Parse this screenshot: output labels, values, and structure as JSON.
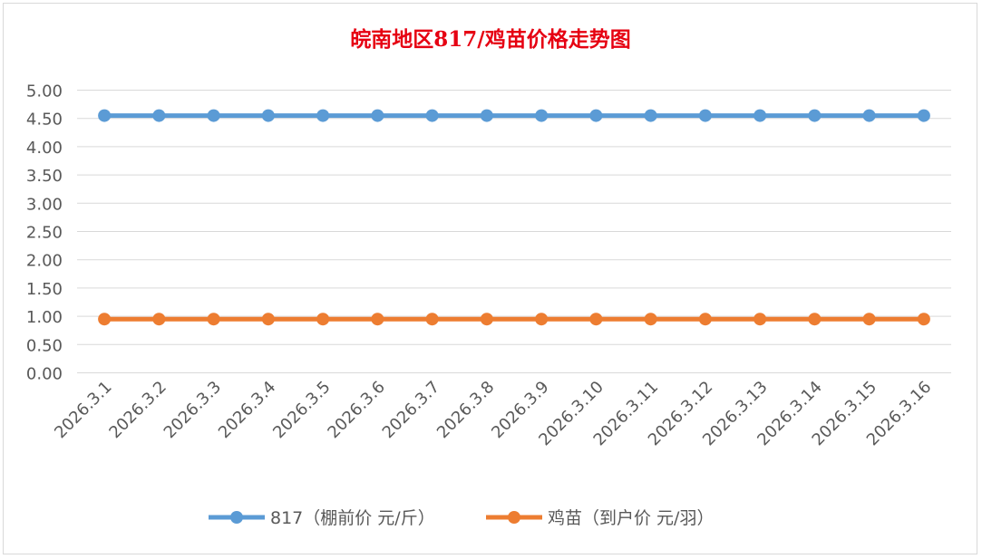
{
  "chart_data": {
    "type": "line",
    "title": "皖南地区817/鸡苗价格走势图",
    "title_color": "#e60012",
    "categories": [
      "2026.3.1",
      "2026.3.2",
      "2026.3.3",
      "2026.3.4",
      "2026.3.5",
      "2026.3.6",
      "2026.3.7",
      "2026.3.8",
      "2026.3.9",
      "2026.3.10",
      "2026.3.11",
      "2026.3.12",
      "2026.3.13",
      "2026.3.14",
      "2026.3.15",
      "2026.3.16"
    ],
    "yticks": [
      "0.00",
      "0.50",
      "1.00",
      "1.50",
      "2.00",
      "2.50",
      "3.00",
      "3.50",
      "4.00",
      "4.50",
      "5.00"
    ],
    "ylim": [
      0,
      5
    ],
    "grid": true,
    "legend_position": "bottom",
    "series": [
      {
        "name": "817（棚前价 元/斤）",
        "color": "#5b9bd5",
        "values": [
          4.55,
          4.55,
          4.55,
          4.55,
          4.55,
          4.55,
          4.55,
          4.55,
          4.55,
          4.55,
          4.55,
          4.55,
          4.55,
          4.55,
          4.55,
          4.55
        ]
      },
      {
        "name": "鸡苗（到户价 元/羽）",
        "color": "#ed7d31",
        "values": [
          0.95,
          0.95,
          0.95,
          0.95,
          0.95,
          0.95,
          0.95,
          0.95,
          0.95,
          0.95,
          0.95,
          0.95,
          0.95,
          0.95,
          0.95,
          0.95
        ]
      }
    ]
  }
}
